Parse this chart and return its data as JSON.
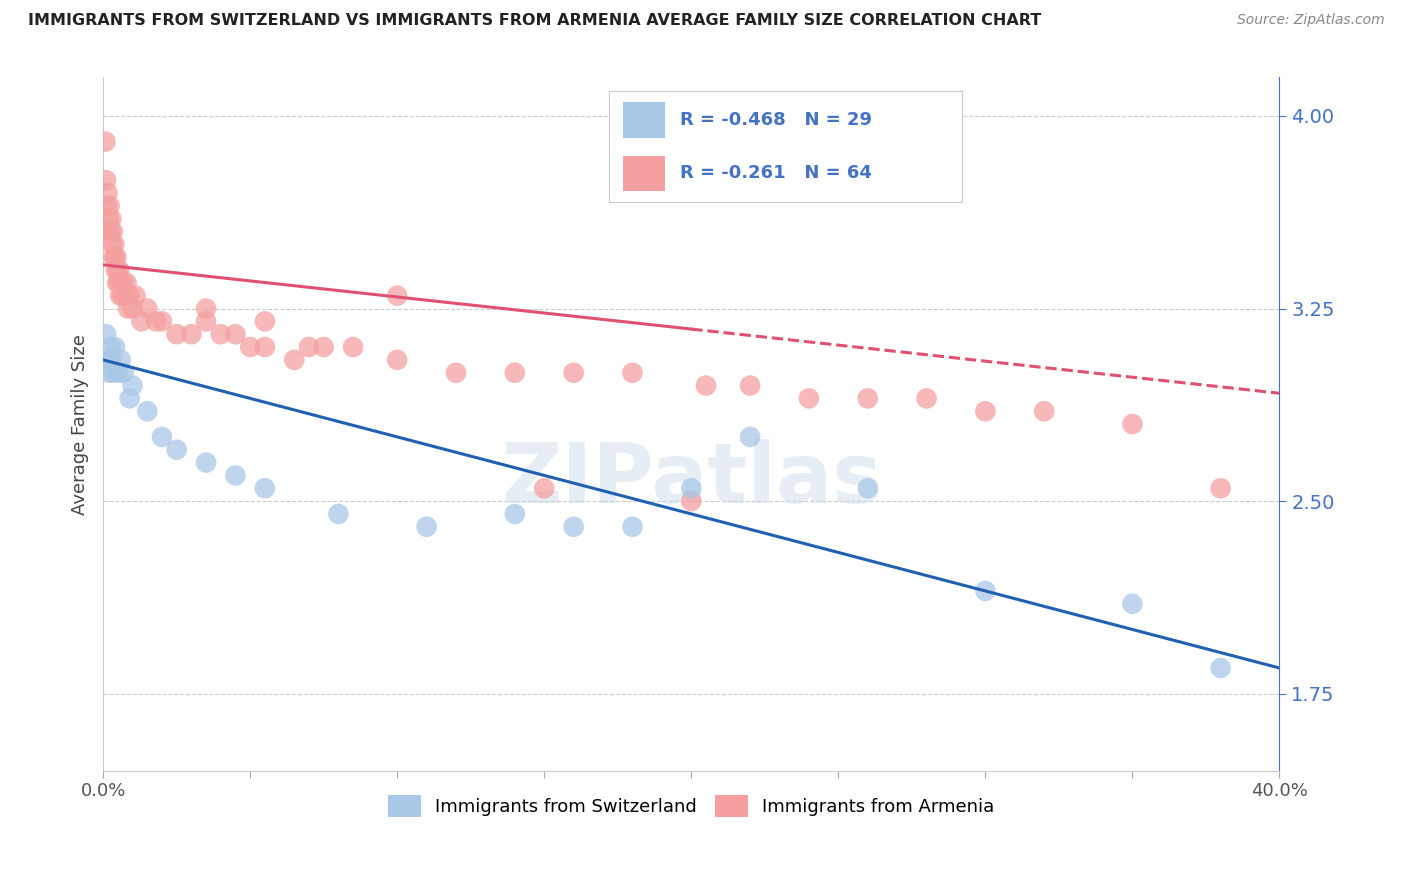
{
  "title": "IMMIGRANTS FROM SWITZERLAND VS IMMIGRANTS FROM ARMENIA AVERAGE FAMILY SIZE CORRELATION CHART",
  "source": "Source: ZipAtlas.com",
  "ylabel": "Average Family Size",
  "xlim": [
    0.0,
    40.0
  ],
  "ylim": [
    1.45,
    4.15
  ],
  "yticks": [
    1.75,
    2.5,
    3.25,
    4.0
  ],
  "xticks": [
    0,
    5,
    10,
    15,
    20,
    25,
    30,
    35,
    40
  ],
  "xticklabels": [
    "0.0%",
    "",
    "",
    "",
    "",
    "",
    "",
    "",
    "40.0%"
  ],
  "legend_r1": "-0.468",
  "legend_n1": "29",
  "legend_r2": "-0.261",
  "legend_n2": "64",
  "blue_dot_color": "#a8c8e8",
  "pink_dot_color": "#f4a0a0",
  "blue_line_color": "#2060b0",
  "pink_line_color": "#e05070",
  "legend_label1": "Immigrants from Switzerland",
  "legend_label2": "Immigrants from Armenia",
  "blue_legend_color": "#a8c8e8",
  "pink_legend_color": "#f4a0a0",
  "watermark": "ZIPatlas",
  "background_color": "#ffffff",
  "grid_color": "#cccccc",
  "sw_x": [
    0.1,
    0.15,
    0.2,
    0.25,
    0.3,
    0.35,
    0.4,
    0.5,
    0.6,
    0.7,
    0.9,
    1.0,
    1.5,
    2.0,
    2.5,
    3.5,
    4.5,
    5.5,
    8.0,
    11.0,
    14.0,
    18.0,
    22.0,
    26.0,
    30.0,
    35.0,
    38.0,
    16.0,
    20.0
  ],
  "sw_y": [
    3.15,
    3.05,
    3.0,
    3.1,
    3.05,
    3.0,
    3.1,
    3.0,
    3.05,
    3.0,
    2.9,
    2.95,
    2.85,
    2.75,
    2.7,
    2.65,
    2.6,
    2.55,
    2.45,
    2.4,
    2.45,
    2.4,
    2.75,
    2.55,
    2.15,
    2.1,
    1.85,
    2.4,
    2.55
  ],
  "ar_x": [
    0.08,
    0.1,
    0.12,
    0.15,
    0.18,
    0.2,
    0.22,
    0.25,
    0.28,
    0.3,
    0.33,
    0.35,
    0.38,
    0.4,
    0.43,
    0.45,
    0.48,
    0.5,
    0.53,
    0.55,
    0.58,
    0.6,
    0.65,
    0.7,
    0.75,
    0.8,
    0.85,
    0.9,
    1.0,
    1.1,
    1.3,
    1.5,
    1.8,
    2.0,
    2.5,
    3.0,
    3.5,
    4.0,
    4.5,
    5.0,
    5.5,
    6.5,
    7.5,
    8.5,
    10.0,
    12.0,
    14.0,
    16.0,
    18.0,
    20.5,
    22.0,
    24.0,
    26.0,
    28.0,
    30.0,
    32.0,
    15.0,
    20.0,
    35.0,
    38.0,
    10.0,
    5.5,
    3.5,
    7.0
  ],
  "ar_y": [
    3.9,
    3.75,
    3.65,
    3.7,
    3.6,
    3.55,
    3.65,
    3.55,
    3.6,
    3.5,
    3.55,
    3.45,
    3.5,
    3.45,
    3.4,
    3.45,
    3.35,
    3.4,
    3.35,
    3.4,
    3.3,
    3.35,
    3.3,
    3.35,
    3.3,
    3.35,
    3.25,
    3.3,
    3.25,
    3.3,
    3.2,
    3.25,
    3.2,
    3.2,
    3.15,
    3.15,
    3.2,
    3.15,
    3.15,
    3.1,
    3.1,
    3.05,
    3.1,
    3.1,
    3.05,
    3.0,
    3.0,
    3.0,
    3.0,
    2.95,
    2.95,
    2.9,
    2.9,
    2.9,
    2.85,
    2.85,
    2.55,
    2.5,
    2.8,
    2.55,
    3.3,
    3.2,
    3.25,
    3.1
  ],
  "sw_line_x0": 0.0,
  "sw_line_y0": 3.05,
  "sw_line_x1": 40.0,
  "sw_line_y1": 1.85,
  "ar_solid_x0": 0.0,
  "ar_solid_y0": 3.42,
  "ar_solid_x1": 20.0,
  "ar_solid_y1": 3.17,
  "ar_dash_x0": 20.0,
  "ar_dash_y0": 3.17,
  "ar_dash_x1": 40.0,
  "ar_dash_y1": 2.92
}
